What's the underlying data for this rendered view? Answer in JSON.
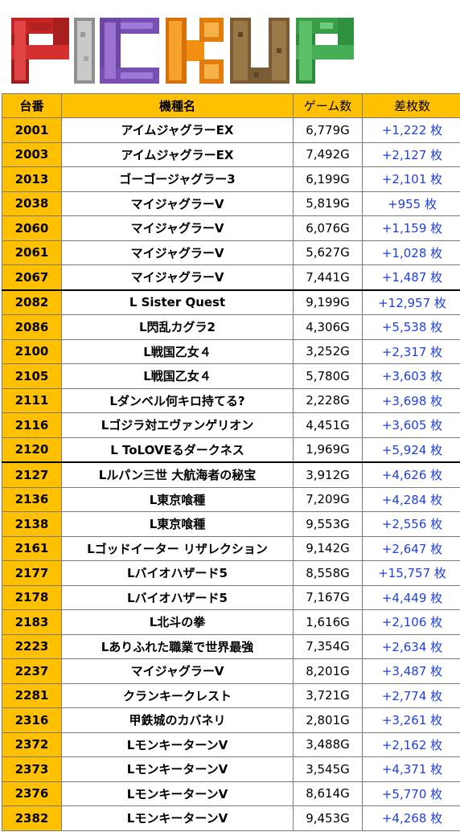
{
  "banner": {
    "title": "PICKUP",
    "letters": [
      "P",
      "I",
      "C",
      "K",
      "U",
      "P"
    ],
    "colors": [
      "#d42a2a",
      "#c0c0c0",
      "#8a5fc4",
      "#ee8a12",
      "#8a6a3a",
      "#3aa04a"
    ]
  },
  "table": {
    "headers": {
      "no": "台番",
      "name": "機種名",
      "games": "ゲーム数",
      "diff": "差枚数"
    },
    "rows": [
      {
        "no": "2001",
        "name": "アイムジャグラーEX",
        "games": "6,779G",
        "diff": "+1,222 枚"
      },
      {
        "no": "2003",
        "name": "アイムジャグラーEX",
        "games": "7,492G",
        "diff": "+2,127 枚"
      },
      {
        "no": "2013",
        "name": "ゴーゴージャグラー3",
        "games": "6,199G",
        "diff": "+2,101 枚"
      },
      {
        "no": "2038",
        "name": "マイジャグラーV",
        "games": "5,819G",
        "diff": "+955 枚"
      },
      {
        "no": "2060",
        "name": "マイジャグラーV",
        "games": "6,076G",
        "diff": "+1,159 枚"
      },
      {
        "no": "2061",
        "name": "マイジャグラーV",
        "games": "5,627G",
        "diff": "+1,028 枚"
      },
      {
        "no": "2067",
        "name": "マイジャグラーV",
        "games": "7,441G",
        "diff": "+1,487 枚"
      },
      {
        "no": "2082",
        "name": "L Sister Quest",
        "games": "9,199G",
        "diff": "+12,957 枚"
      },
      {
        "no": "2086",
        "name": "L閃乱カグラ2",
        "games": "4,306G",
        "diff": "+5,538 枚"
      },
      {
        "no": "2100",
        "name": "L戦国乙女４",
        "games": "3,252G",
        "diff": "+2,317 枚"
      },
      {
        "no": "2105",
        "name": "L戦国乙女４",
        "games": "5,780G",
        "diff": "+3,603 枚"
      },
      {
        "no": "2111",
        "name": "Lダンベル何キロ持てる?",
        "games": "2,228G",
        "diff": "+3,698 枚"
      },
      {
        "no": "2116",
        "name": "Lゴジラ対エヴァンゲリオン",
        "games": "4,451G",
        "diff": "+3,605 枚"
      },
      {
        "no": "2120",
        "name": "L ToLOVEるダークネス",
        "games": "1,969G",
        "diff": "+5,924 枚"
      },
      {
        "no": "2127",
        "name": "Lルパン三世 大航海者の秘宝",
        "games": "3,912G",
        "diff": "+4,626 枚"
      },
      {
        "no": "2136",
        "name": "L東京喰種",
        "games": "7,209G",
        "diff": "+4,284 枚"
      },
      {
        "no": "2138",
        "name": "L東京喰種",
        "games": "9,553G",
        "diff": "+2,556 枚"
      },
      {
        "no": "2161",
        "name": "Lゴッドイーター リザレクション",
        "games": "9,142G",
        "diff": "+2,647 枚"
      },
      {
        "no": "2177",
        "name": "Lバイオハザード5",
        "games": "8,558G",
        "diff": "+15,757 枚"
      },
      {
        "no": "2178",
        "name": "Lバイオハザード5",
        "games": "7,167G",
        "diff": "+4,449 枚"
      },
      {
        "no": "2183",
        "name": "L北斗の拳",
        "games": "1,616G",
        "diff": "+2,106 枚"
      },
      {
        "no": "2223",
        "name": "Lありふれた職業で世界最強",
        "games": "7,354G",
        "diff": "+2,634 枚"
      },
      {
        "no": "2237",
        "name": "マイジャグラーV",
        "games": "8,201G",
        "diff": "+3,487 枚"
      },
      {
        "no": "2281",
        "name": "クランキークレスト",
        "games": "3,721G",
        "diff": "+2,774 枚"
      },
      {
        "no": "2316",
        "name": "甲鉄城のカバネリ",
        "games": "2,801G",
        "diff": "+3,261 枚"
      },
      {
        "no": "2372",
        "name": "LモンキーターンV",
        "games": "3,488G",
        "diff": "+2,162 枚"
      },
      {
        "no": "2373",
        "name": "LモンキーターンV",
        "games": "3,545G",
        "diff": "+4,371 枚"
      },
      {
        "no": "2376",
        "name": "LモンキーターンV",
        "games": "8,614G",
        "diff": "+5,770 枚"
      },
      {
        "no": "2382",
        "name": "LモンキーターンV",
        "games": "9,453G",
        "diff": "+4,268 枚"
      }
    ]
  }
}
